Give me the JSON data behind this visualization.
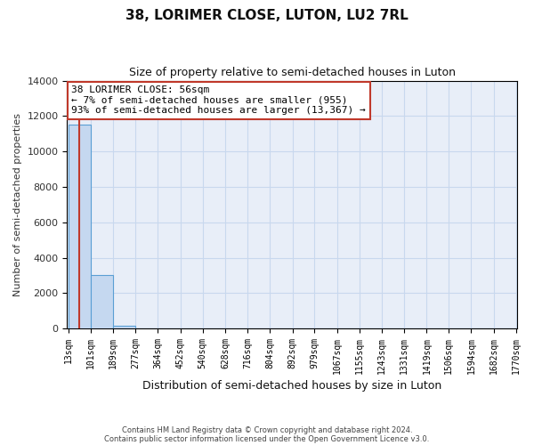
{
  "title": "38, LORIMER CLOSE, LUTON, LU2 7RL",
  "subtitle": "Size of property relative to semi-detached houses in Luton",
  "xlabel": "Distribution of semi-detached houses by size in Luton",
  "ylabel": "Number of semi-detached properties",
  "bar_values": [
    11500,
    3000,
    150,
    5,
    2,
    1,
    0,
    0,
    0,
    0,
    0,
    0,
    0,
    0,
    0,
    0,
    0,
    0,
    0,
    0
  ],
  "bin_edges": [
    13,
    101,
    189,
    277,
    364,
    452,
    540,
    628,
    716,
    804,
    892,
    979,
    1067,
    1155,
    1243,
    1331,
    1419,
    1506,
    1594,
    1682,
    1770
  ],
  "tick_labels": [
    "13sqm",
    "101sqm",
    "189sqm",
    "277sqm",
    "364sqm",
    "452sqm",
    "540sqm",
    "628sqm",
    "716sqm",
    "804sqm",
    "892sqm",
    "979sqm",
    "1067sqm",
    "1155sqm",
    "1243sqm",
    "1331sqm",
    "1419sqm",
    "1506sqm",
    "1594sqm",
    "1682sqm",
    "1770sqm"
  ],
  "bar_color": "#c5d8f0",
  "bar_edge_color": "#5a9fd4",
  "property_value": 56,
  "property_label": "38 LORIMER CLOSE: 56sqm",
  "smaller_pct": "7%",
  "smaller_count": 955,
  "larger_pct": "93%",
  "larger_count": "13,367",
  "annotation_line_color": "#c0392b",
  "grid_color": "#c8d8ee",
  "bg_color": "#e8eef8",
  "ylim": [
    0,
    14000
  ],
  "yticks": [
    0,
    2000,
    4000,
    6000,
    8000,
    10000,
    12000,
    14000
  ],
  "footer_line1": "Contains HM Land Registry data © Crown copyright and database right 2024.",
  "footer_line2": "Contains public sector information licensed under the Open Government Licence v3.0."
}
